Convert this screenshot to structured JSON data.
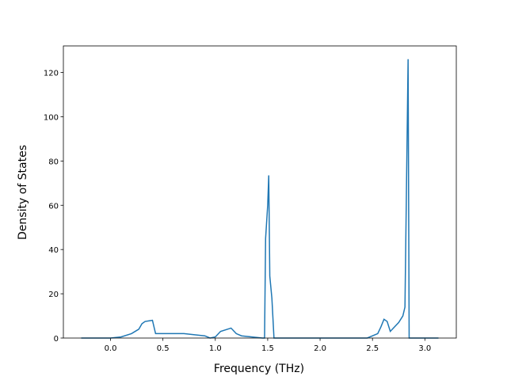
{
  "chart_data": {
    "type": "line",
    "xlabel": "Frequency (THz)",
    "ylabel": "Density of States",
    "x": [
      -0.28,
      0.0,
      0.1,
      0.2,
      0.27,
      0.3,
      0.33,
      0.4,
      0.43,
      0.7,
      0.9,
      0.95,
      1.0,
      1.05,
      1.15,
      1.2,
      1.25,
      1.45,
      1.47,
      1.48,
      1.5,
      1.51,
      1.52,
      1.54,
      1.56,
      2.45,
      2.55,
      2.58,
      2.61,
      2.64,
      2.67,
      2.7,
      2.75,
      2.79,
      2.81,
      2.84,
      2.85,
      3.13
    ],
    "values": [
      0,
      0,
      0.5,
      2,
      4,
      6.5,
      7.5,
      8,
      2,
      2,
      1,
      0,
      0.5,
      3,
      4.5,
      2,
      1,
      0,
      0,
      45,
      60,
      73.5,
      28,
      18,
      0,
      0,
      2,
      5,
      8.5,
      7.5,
      3,
      4.5,
      7,
      10,
      14,
      126,
      0,
      0
    ],
    "color": "#1f77b4",
    "xlim": [
      -0.45,
      3.3
    ],
    "xticks": [
      {
        "value": 0,
        "label": "0.0"
      },
      {
        "value": 0.5,
        "label": "0.5"
      },
      {
        "value": 1,
        "label": "1.0"
      },
      {
        "value": 1.5,
        "label": "1.5"
      },
      {
        "value": 2,
        "label": "2.0"
      },
      {
        "value": 2.5,
        "label": "2.5"
      },
      {
        "value": 3,
        "label": "3.0"
      }
    ],
    "ylim": [
      0,
      132
    ],
    "yticks": [
      0,
      20,
      40,
      60,
      80,
      100,
      120
    ],
    "grid": false
  }
}
